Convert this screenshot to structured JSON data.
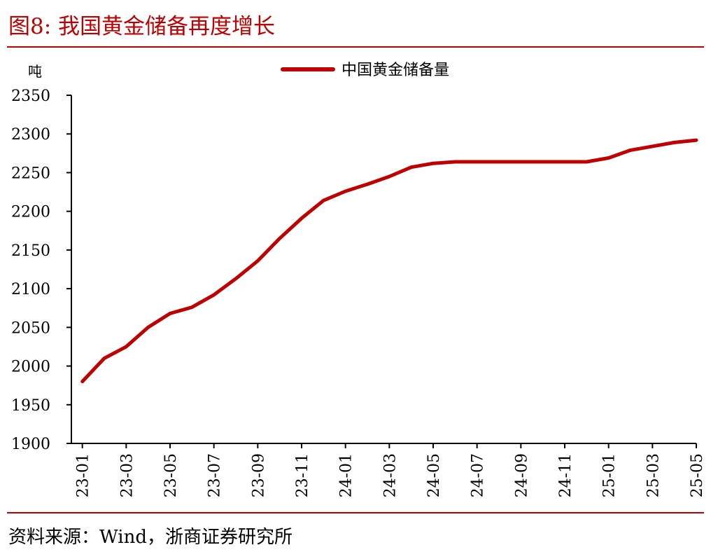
{
  "figure": {
    "title": "图8:   我国黄金储备再度增长",
    "source": "资料来源：Wind，浙商证券研究所"
  },
  "colors": {
    "accent": "#c00000",
    "axis": "#000000"
  },
  "chart_data": {
    "type": "line",
    "title": "",
    "xlabel": "",
    "ylabel": "吨",
    "ylim": [
      1900,
      2350
    ],
    "yticks": [
      1900,
      1950,
      2000,
      2050,
      2100,
      2150,
      2200,
      2250,
      2300,
      2350
    ],
    "grid": false,
    "legend_position": "top-center",
    "x": [
      "23-01",
      "23-02",
      "23-03",
      "23-04",
      "23-05",
      "23-06",
      "23-07",
      "23-08",
      "23-09",
      "23-10",
      "23-11",
      "23-12",
      "24-01",
      "24-02",
      "24-03",
      "24-04",
      "24-05",
      "24-06",
      "24-07",
      "24-08",
      "24-09",
      "24-10",
      "24-11",
      "24-12",
      "25-01",
      "25-02",
      "25-03",
      "25-04",
      "25-05"
    ],
    "x_tick_labels": [
      "23-01",
      "23-03",
      "23-05",
      "23-07",
      "23-09",
      "23-11",
      "24-01",
      "24-03",
      "24-05",
      "24-07",
      "24-09",
      "24-11",
      "25-01",
      "25-03",
      "25-05"
    ],
    "series": [
      {
        "name": "中国黄金储备量",
        "color": "#c00000",
        "values": [
          1980,
          2010,
          2025,
          2050,
          2068,
          2076,
          2092,
          2113,
          2136,
          2165,
          2191,
          2214,
          2226,
          2235,
          2245,
          2257,
          2262,
          2264,
          2264,
          2264,
          2264,
          2264,
          2264,
          2264,
          2269,
          2279,
          2284,
          2289,
          2292
        ]
      }
    ]
  }
}
